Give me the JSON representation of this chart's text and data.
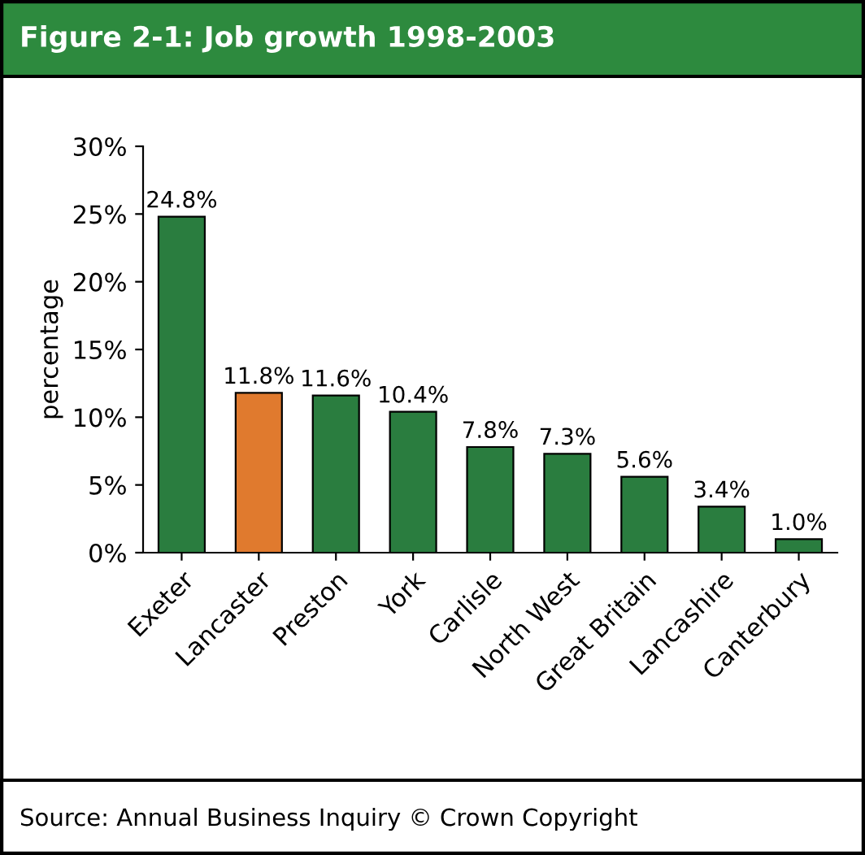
{
  "chart_data": {
    "type": "bar",
    "title": "Figure 2-1: Job growth 1998-2003",
    "ylabel": "percentage",
    "categories": [
      "Exeter",
      "Lancaster",
      "Preston",
      "York",
      "Carlisle",
      "North West",
      "Great Britain",
      "Lancashire",
      "Canterbury"
    ],
    "values": [
      24.8,
      11.8,
      11.6,
      10.4,
      7.8,
      7.3,
      5.6,
      3.4,
      1.0
    ],
    "colors": [
      "#2a7d3f",
      "#e07a2e",
      "#2a7d3f",
      "#2a7d3f",
      "#2a7d3f",
      "#2a7d3f",
      "#2a7d3f",
      "#2a7d3f",
      "#2a7d3f"
    ],
    "value_labels": [
      "24.8%",
      "11.8%",
      "11.6%",
      "10.4%",
      "7.8%",
      "7.3%",
      "5.6%",
      "3.4%",
      "1.0%"
    ],
    "ylim": [
      0,
      30
    ],
    "yticks": [
      {
        "value": 0,
        "label": "0%"
      },
      {
        "value": 5,
        "label": "5%"
      },
      {
        "value": 10,
        "label": "10%"
      },
      {
        "value": 15,
        "label": "15%"
      },
      {
        "value": 20,
        "label": "20%"
      },
      {
        "value": 25,
        "label": "25%"
      },
      {
        "value": 30,
        "label": "30%"
      }
    ],
    "annotations": [
      "Source: Annual Business Inquiry © Crown Copyright"
    ]
  }
}
